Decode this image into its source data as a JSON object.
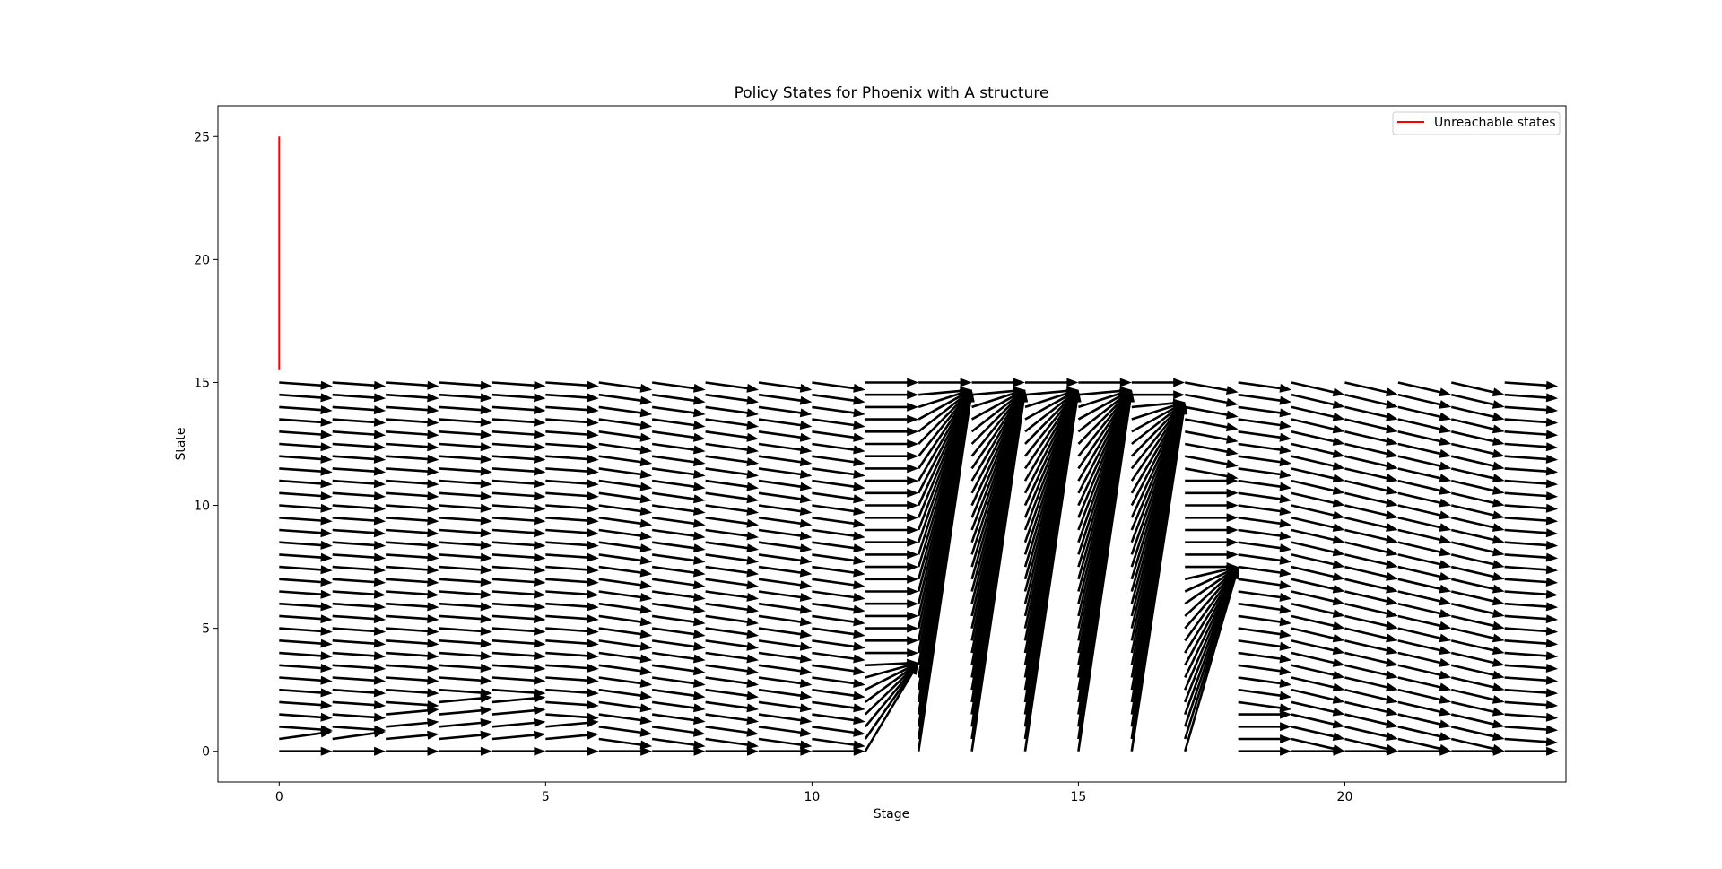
{
  "chart_data": {
    "type": "quiver",
    "title": "Policy States for Phoenix with A structure",
    "xlabel": "Stage",
    "ylabel": "State",
    "xlim": [
      -1.15,
      24.15
    ],
    "ylim": [
      -1.25,
      26.25
    ],
    "xticks": [
      0,
      5,
      10,
      15,
      20
    ],
    "yticks": [
      0,
      5,
      10,
      15,
      20,
      25
    ],
    "grid": false,
    "legend": {
      "placement": "top-right",
      "entries": [
        {
          "label": "Unreachable states",
          "color": "#ff0000"
        }
      ]
    },
    "unreachable_states": {
      "stage": 0,
      "state_from": 15.5,
      "state_to": 25
    },
    "arrow_color": "#000000",
    "states": [
      0,
      0.5,
      1,
      1.5,
      2,
      2.5,
      3,
      3.5,
      4,
      4.5,
      5,
      5.5,
      6,
      6.5,
      7,
      7.5,
      8,
      8.5,
      9,
      9.5,
      10,
      10.5,
      11,
      11.5,
      12,
      12.5,
      13,
      13.5,
      14,
      14.5,
      15
    ],
    "stage_policies": [
      {
        "stage": 0,
        "shape": "shift",
        "params": [
          -0.15,
          0.7,
          0.3
        ]
      },
      {
        "stage": 1,
        "shape": "shift",
        "params": [
          -0.15,
          0.5,
          0.3
        ]
      },
      {
        "stage": 2,
        "shape": "shift",
        "params": [
          -0.15,
          1.5,
          0.2
        ]
      },
      {
        "stage": 3,
        "shape": "shift",
        "params": [
          -0.15,
          2.2,
          0.2
        ]
      },
      {
        "stage": 4,
        "shape": "shift",
        "params": [
          -0.15,
          2.0,
          0.2
        ]
      },
      {
        "stage": 5,
        "shape": "shift",
        "params": [
          -0.15,
          1.0,
          0.2
        ]
      },
      {
        "stage": 6,
        "shape": "shift",
        "params": [
          -0.3,
          0,
          0
        ]
      },
      {
        "stage": 7,
        "shape": "shift",
        "params": [
          -0.3,
          0,
          0
        ]
      },
      {
        "stage": 8,
        "shape": "shift",
        "params": [
          -0.3,
          0,
          0
        ]
      },
      {
        "stage": 9,
        "shape": "shift",
        "params": [
          -0.3,
          0,
          0
        ]
      },
      {
        "stage": 10,
        "shape": "shift",
        "params": [
          -0.3,
          0,
          0
        ]
      },
      {
        "stage": 11,
        "shape": "upper",
        "params": [
          3.6,
          3.6
        ]
      },
      {
        "stage": 12,
        "shape": "upper",
        "params": [
          14.7,
          14.7
        ]
      },
      {
        "stage": 13,
        "shape": "upper",
        "params": [
          14.7,
          14.7
        ]
      },
      {
        "stage": 14,
        "shape": "upper",
        "params": [
          14.7,
          14.7
        ]
      },
      {
        "stage": 15,
        "shape": "upper",
        "params": [
          14.7,
          14.7
        ]
      },
      {
        "stage": 16,
        "shape": "upper",
        "params": [
          14.2,
          14.2
        ]
      },
      {
        "stage": 17,
        "shape": "band",
        "params": [
          8,
          11,
          7.5
        ]
      },
      {
        "stage": 18,
        "shape": "floor",
        "params": [
          1.5,
          0.3
        ]
      },
      {
        "stage": 19,
        "shape": "shift",
        "params": [
          -0.5,
          0,
          0
        ]
      },
      {
        "stage": 20,
        "shape": "shift",
        "params": [
          -0.5,
          0,
          0
        ]
      },
      {
        "stage": 21,
        "shape": "shift",
        "params": [
          -0.5,
          0,
          0
        ]
      },
      {
        "stage": 22,
        "shape": "shift",
        "params": [
          -0.5,
          0,
          0
        ]
      },
      {
        "stage": 23,
        "shape": "shift",
        "params": [
          -0.15,
          0,
          0
        ]
      }
    ]
  }
}
